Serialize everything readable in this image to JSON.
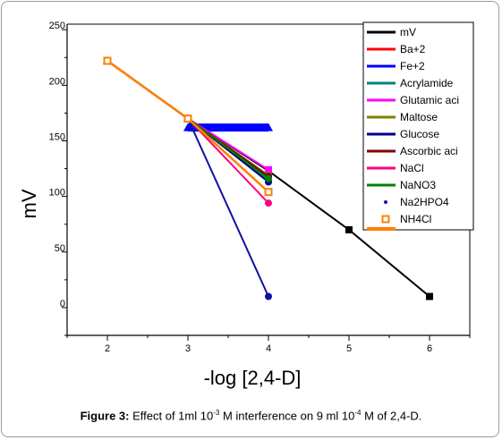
{
  "caption": {
    "label": "Figure 3:",
    "text_parts": [
      "Effect of 1ml 10",
      "-3",
      " M interference on 9 ml 10",
      "-4",
      " M of 2,4-D."
    ]
  },
  "chart_data": {
    "type": "line",
    "xlabel": "-log [2,4-D]",
    "ylabel": "mV",
    "xlim": [
      1.5,
      6.5
    ],
    "ylim": [
      -25,
      255
    ],
    "xticks": [
      2,
      3,
      4,
      5,
      6
    ],
    "yticks": [
      0,
      50,
      100,
      150,
      200,
      250
    ],
    "ytick_labels": [
      "0",
      "50",
      "100",
      "150",
      "200",
      "250"
    ],
    "legend_position": "top-right",
    "series": [
      {
        "name": "mV",
        "color": "#000000",
        "marker": "square",
        "x": [
          2,
          3,
          4,
          5,
          6
        ],
        "y": [
          222,
          170,
          123,
          70,
          10
        ]
      },
      {
        "name": "Ba+2",
        "color": "#ff0000",
        "marker": "circle",
        "x": [
          2,
          3,
          4
        ],
        "y": [
          222,
          170,
          117
        ]
      },
      {
        "name": "Fe+2",
        "color": "#0000ff",
        "marker": "triangle",
        "x": [
          2,
          3,
          3,
          4
        ],
        "y": [
          222,
          170,
          162,
          162
        ]
      },
      {
        "name": "Acrylamide",
        "color": "#008080",
        "marker": "circle",
        "x": [
          2,
          3,
          4
        ],
        "y": [
          222,
          170,
          114
        ]
      },
      {
        "name": "Glutamic aci",
        "color": "#ff00ff",
        "marker": "square",
        "x": [
          2,
          3,
          4
        ],
        "y": [
          222,
          170,
          124
        ]
      },
      {
        "name": "Maltose",
        "color": "#808000",
        "marker": "circle",
        "x": [
          2,
          3,
          4
        ],
        "y": [
          222,
          170,
          119
        ]
      },
      {
        "name": "Glucose",
        "color": "#000080",
        "marker": "circle",
        "x": [
          2,
          3,
          4
        ],
        "y": [
          222,
          170,
          113
        ]
      },
      {
        "name": "Ascorbic aci",
        "color": "#800000",
        "marker": "circle",
        "x": [
          2,
          3,
          4
        ],
        "y": [
          222,
          170,
          118
        ]
      },
      {
        "name": "NaCl",
        "color": "#ff0080",
        "marker": "circle",
        "x": [
          2,
          3,
          4
        ],
        "y": [
          222,
          170,
          94
        ]
      },
      {
        "name": "NaNO3",
        "color": "#008000",
        "marker": "circle",
        "x": [
          2,
          3,
          4
        ],
        "y": [
          222,
          170,
          116
        ]
      },
      {
        "name": "Na2HPO4",
        "color": "#1010a0",
        "marker": "circle",
        "x": [
          2,
          3,
          4
        ],
        "y": [
          222,
          170,
          10
        ]
      },
      {
        "name": "NH4Cl",
        "color": "#ff8000",
        "marker": "square-open",
        "x": [
          2,
          3,
          4
        ],
        "y": [
          222,
          170,
          104
        ]
      }
    ]
  }
}
